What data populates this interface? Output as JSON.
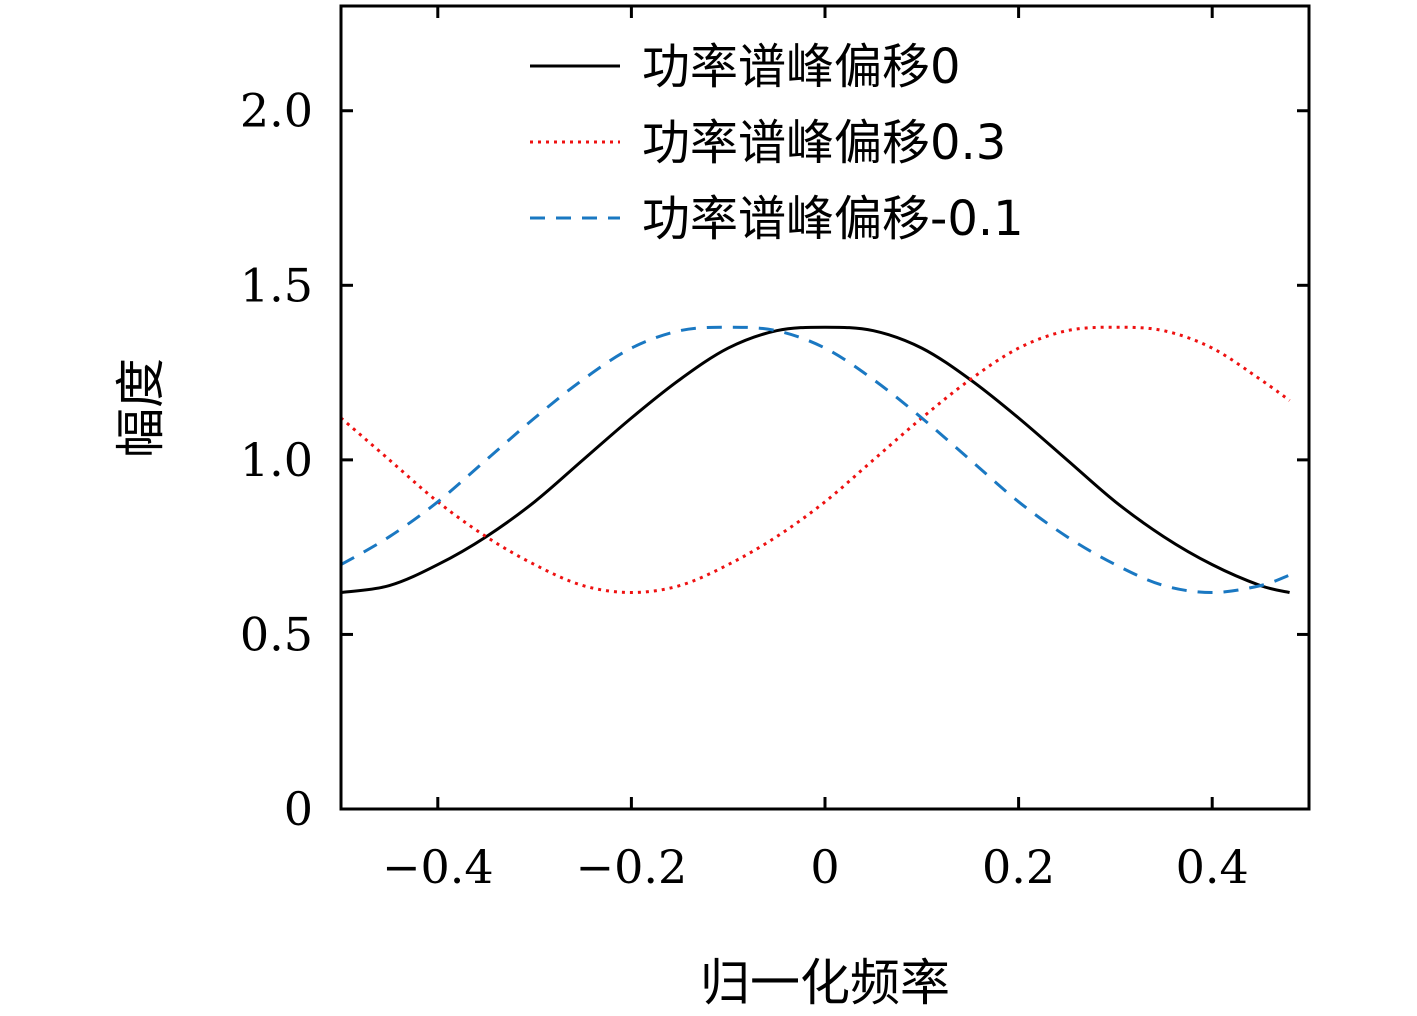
{
  "chart_data": {
    "type": "line",
    "xlabel": "归一化频率",
    "ylabel": "幅度",
    "xlim": [
      -0.5,
      0.5
    ],
    "ylim": [
      0,
      2.3
    ],
    "x_ticks": [
      -0.4,
      -0.2,
      0,
      0.2,
      0.4
    ],
    "x_tick_labels": [
      "−0.4",
      "−0.2",
      "0",
      "0.2",
      "0.4"
    ],
    "y_ticks": [
      0,
      0.5,
      1.0,
      1.5,
      2.0
    ],
    "y_tick_labels": [
      "0",
      "0.5",
      "1.0",
      "1.5",
      "2.0"
    ],
    "grid": false,
    "legend_position": "top-right",
    "x": [
      -0.5,
      -0.45,
      -0.4,
      -0.35,
      -0.3,
      -0.25,
      -0.2,
      -0.15,
      -0.1,
      -0.05,
      0.0,
      0.05,
      0.1,
      0.15,
      0.2,
      0.25,
      0.3,
      0.35,
      0.4,
      0.45,
      0.48
    ],
    "series": [
      {
        "name": "功率谱峰偏移0",
        "color": "#000000",
        "style": "solid",
        "values": [
          0.62,
          0.64,
          0.7,
          0.78,
          0.88,
          1.0,
          1.12,
          1.23,
          1.32,
          1.37,
          1.38,
          1.37,
          1.32,
          1.23,
          1.12,
          1.0,
          0.88,
          0.78,
          0.7,
          0.64,
          0.62
        ]
      },
      {
        "name": "功率谱峰偏移0.3",
        "color": "#ee1111",
        "style": "dotted",
        "values": [
          1.12,
          1.0,
          0.88,
          0.78,
          0.7,
          0.64,
          0.62,
          0.64,
          0.7,
          0.78,
          0.88,
          1.0,
          1.12,
          1.23,
          1.32,
          1.37,
          1.38,
          1.37,
          1.32,
          1.23,
          1.17
        ]
      },
      {
        "name": "功率谱峰偏移-0.1",
        "color": "#1a78c2",
        "style": "dashed",
        "values": [
          0.7,
          0.78,
          0.88,
          1.0,
          1.12,
          1.23,
          1.32,
          1.37,
          1.38,
          1.37,
          1.32,
          1.23,
          1.12,
          1.0,
          0.88,
          0.78,
          0.7,
          0.64,
          0.62,
          0.64,
          0.67
        ]
      }
    ]
  }
}
